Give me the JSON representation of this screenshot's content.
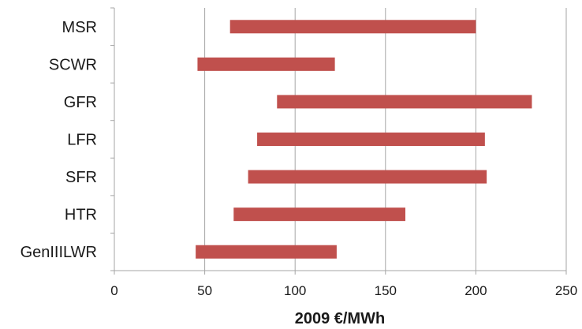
{
  "chart_data": {
    "type": "bar",
    "orientation": "horizontal",
    "subtype": "floating-range",
    "categories": [
      "MSR",
      "SCWR",
      "GFR",
      "LFR",
      "SFR",
      "HTR",
      "GenIIILWR"
    ],
    "series": [
      {
        "ranges": [
          [
            64,
            200
          ],
          [
            46,
            122
          ],
          [
            90,
            231
          ],
          [
            79,
            205
          ],
          [
            74,
            206
          ],
          [
            66,
            161
          ],
          [
            45,
            123
          ]
        ]
      }
    ],
    "xlabel": "2009 €/MWh",
    "ylabel": "",
    "title": "",
    "xlim": [
      0,
      250
    ],
    "xticks": [
      0,
      50,
      100,
      150,
      200,
      250
    ],
    "grid": "vertical",
    "legend": "none",
    "bar_color": "#c0504d",
    "gridline_color": "#a6a6a6",
    "axis_color": "#a6a6a6"
  }
}
